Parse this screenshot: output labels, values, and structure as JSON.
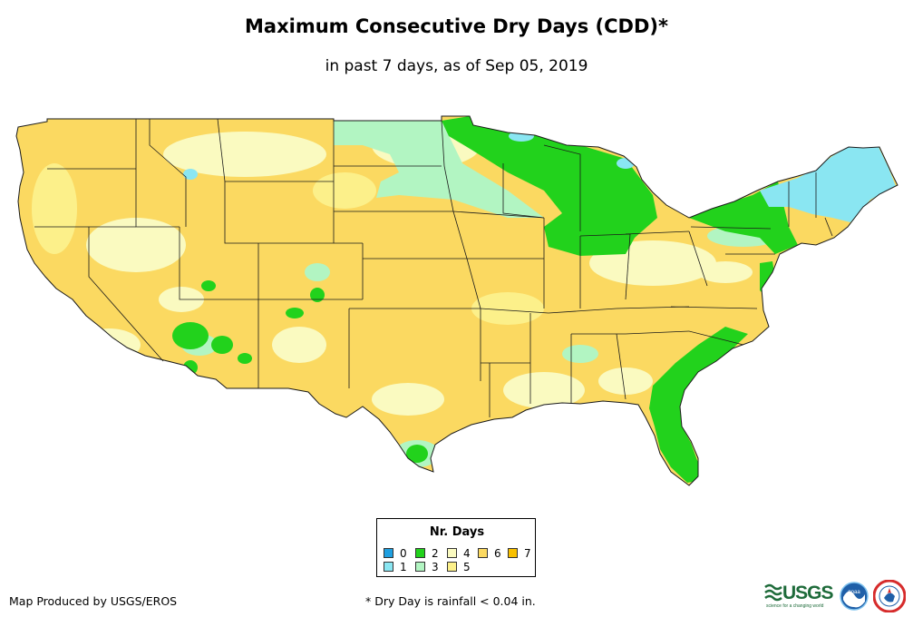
{
  "title": "Maximum Consecutive Dry Days (CDD)*",
  "subtitle": "in past 7 days, as of Sep 05, 2019",
  "legend": {
    "title": "Nr. Days",
    "items": [
      {
        "label": "0",
        "color": "#1f9fe0"
      },
      {
        "label": "1",
        "color": "#8ae6f2"
      },
      {
        "label": "2",
        "color": "#22d21c"
      },
      {
        "label": "3",
        "color": "#b2f5c2"
      },
      {
        "label": "4",
        "color": "#fafac0"
      },
      {
        "label": "5",
        "color": "#fcf08a"
      },
      {
        "label": "6",
        "color": "#fbd961"
      },
      {
        "label": "7",
        "color": "#f8c000"
      }
    ]
  },
  "credit": "Map Produced by USGS/EROS",
  "footnote": "* Dry Day is rainfall < 0.04 in.",
  "logos": {
    "usgs": {
      "name": "usgs-logo",
      "text": "USGS",
      "tagline": "science for a changing world"
    },
    "noaa": {
      "name": "noaa-logo",
      "text": "noaa"
    },
    "nws": {
      "name": "nws-logo"
    }
  },
  "map": {
    "region": "contiguous-united-states",
    "dominant_color": "#fbd961",
    "wet_color": "#22d21c",
    "light_color": "#fafac0",
    "mint_color": "#b2f5c2",
    "cyan_color": "#8ae6f2"
  }
}
